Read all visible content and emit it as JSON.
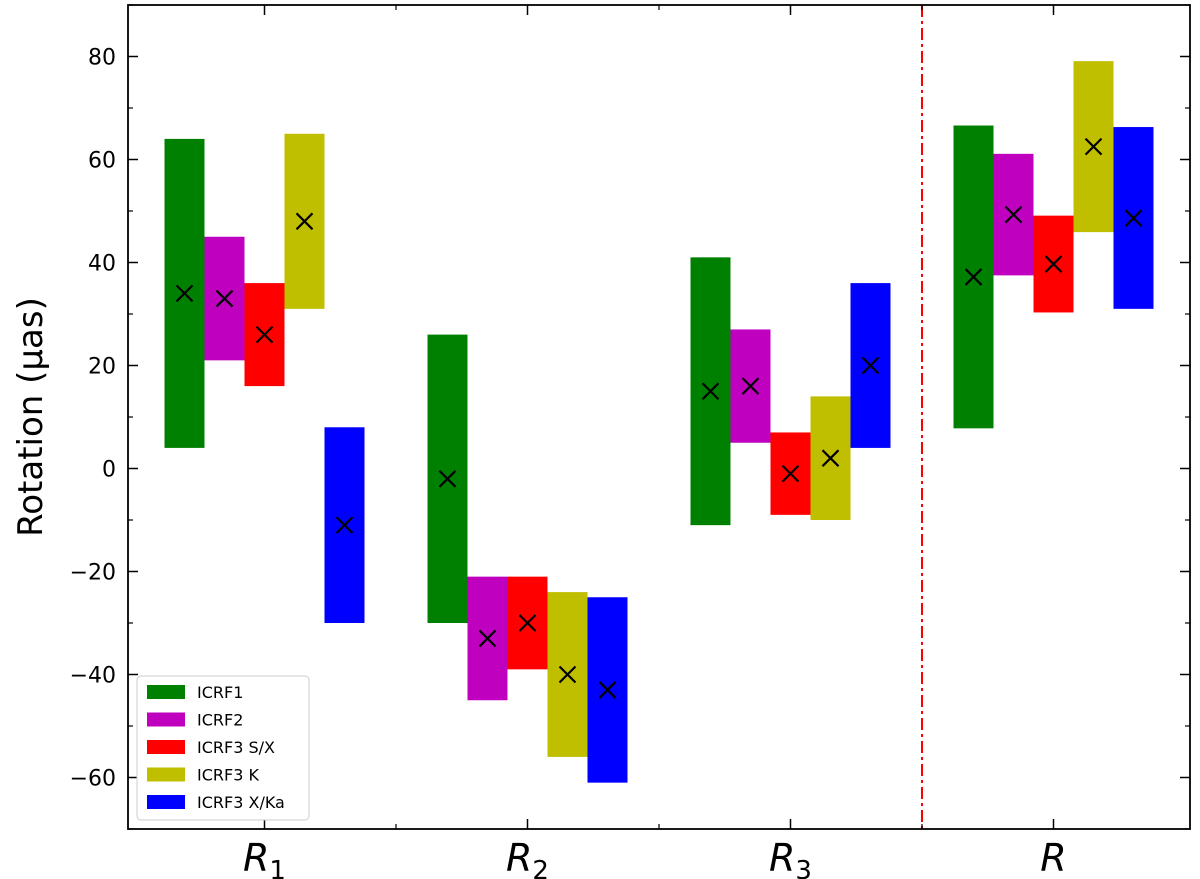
{
  "chart_data": {
    "type": "bar",
    "ylabel": "Rotation (μas)",
    "ylim": [
      -70,
      90
    ],
    "yticks": [
      -60,
      -40,
      -20,
      0,
      20,
      40,
      60,
      80
    ],
    "categories": [
      {
        "base": "R",
        "sub": "1"
      },
      {
        "base": "R",
        "sub": "2"
      },
      {
        "base": "R",
        "sub": "3"
      },
      {
        "base": "R",
        "sub": ""
      }
    ],
    "separator_after_category": 2,
    "legend": {
      "position": "lower-left"
    },
    "series": [
      {
        "name": "ICRF1",
        "color": "#008000",
        "values": [
          34,
          -2,
          15,
          37.2
        ],
        "lower": [
          4,
          -30,
          -11,
          7.8
        ],
        "upper": [
          64,
          26,
          41,
          66.6
        ]
      },
      {
        "name": "ICRF2",
        "color": "#bf00bf",
        "values": [
          33,
          -33,
          16,
          49.3
        ],
        "lower": [
          21,
          -45,
          5,
          37.5
        ],
        "upper": [
          45,
          -21,
          27,
          61.1
        ]
      },
      {
        "name": "ICRF3 S/X",
        "color": "#ff0000",
        "values": [
          26,
          -30,
          -1,
          39.7
        ],
        "lower": [
          16,
          -39,
          -9,
          30.3
        ],
        "upper": [
          36,
          -21,
          7,
          49.1
        ]
      },
      {
        "name": "ICRF3 K",
        "color": "#bfbf00",
        "values": [
          48,
          -40,
          2,
          62.5
        ],
        "lower": [
          31,
          -56,
          -10,
          45.9
        ],
        "upper": [
          65,
          -24,
          14,
          79.1
        ]
      },
      {
        "name": "ICRF3 X/Ka",
        "color": "#0000ff",
        "values": [
          -11,
          -43,
          20,
          48.6
        ],
        "lower": [
          -30,
          -61,
          4,
          31.0
        ],
        "upper": [
          8,
          -25,
          36,
          66.3
        ]
      }
    ]
  }
}
